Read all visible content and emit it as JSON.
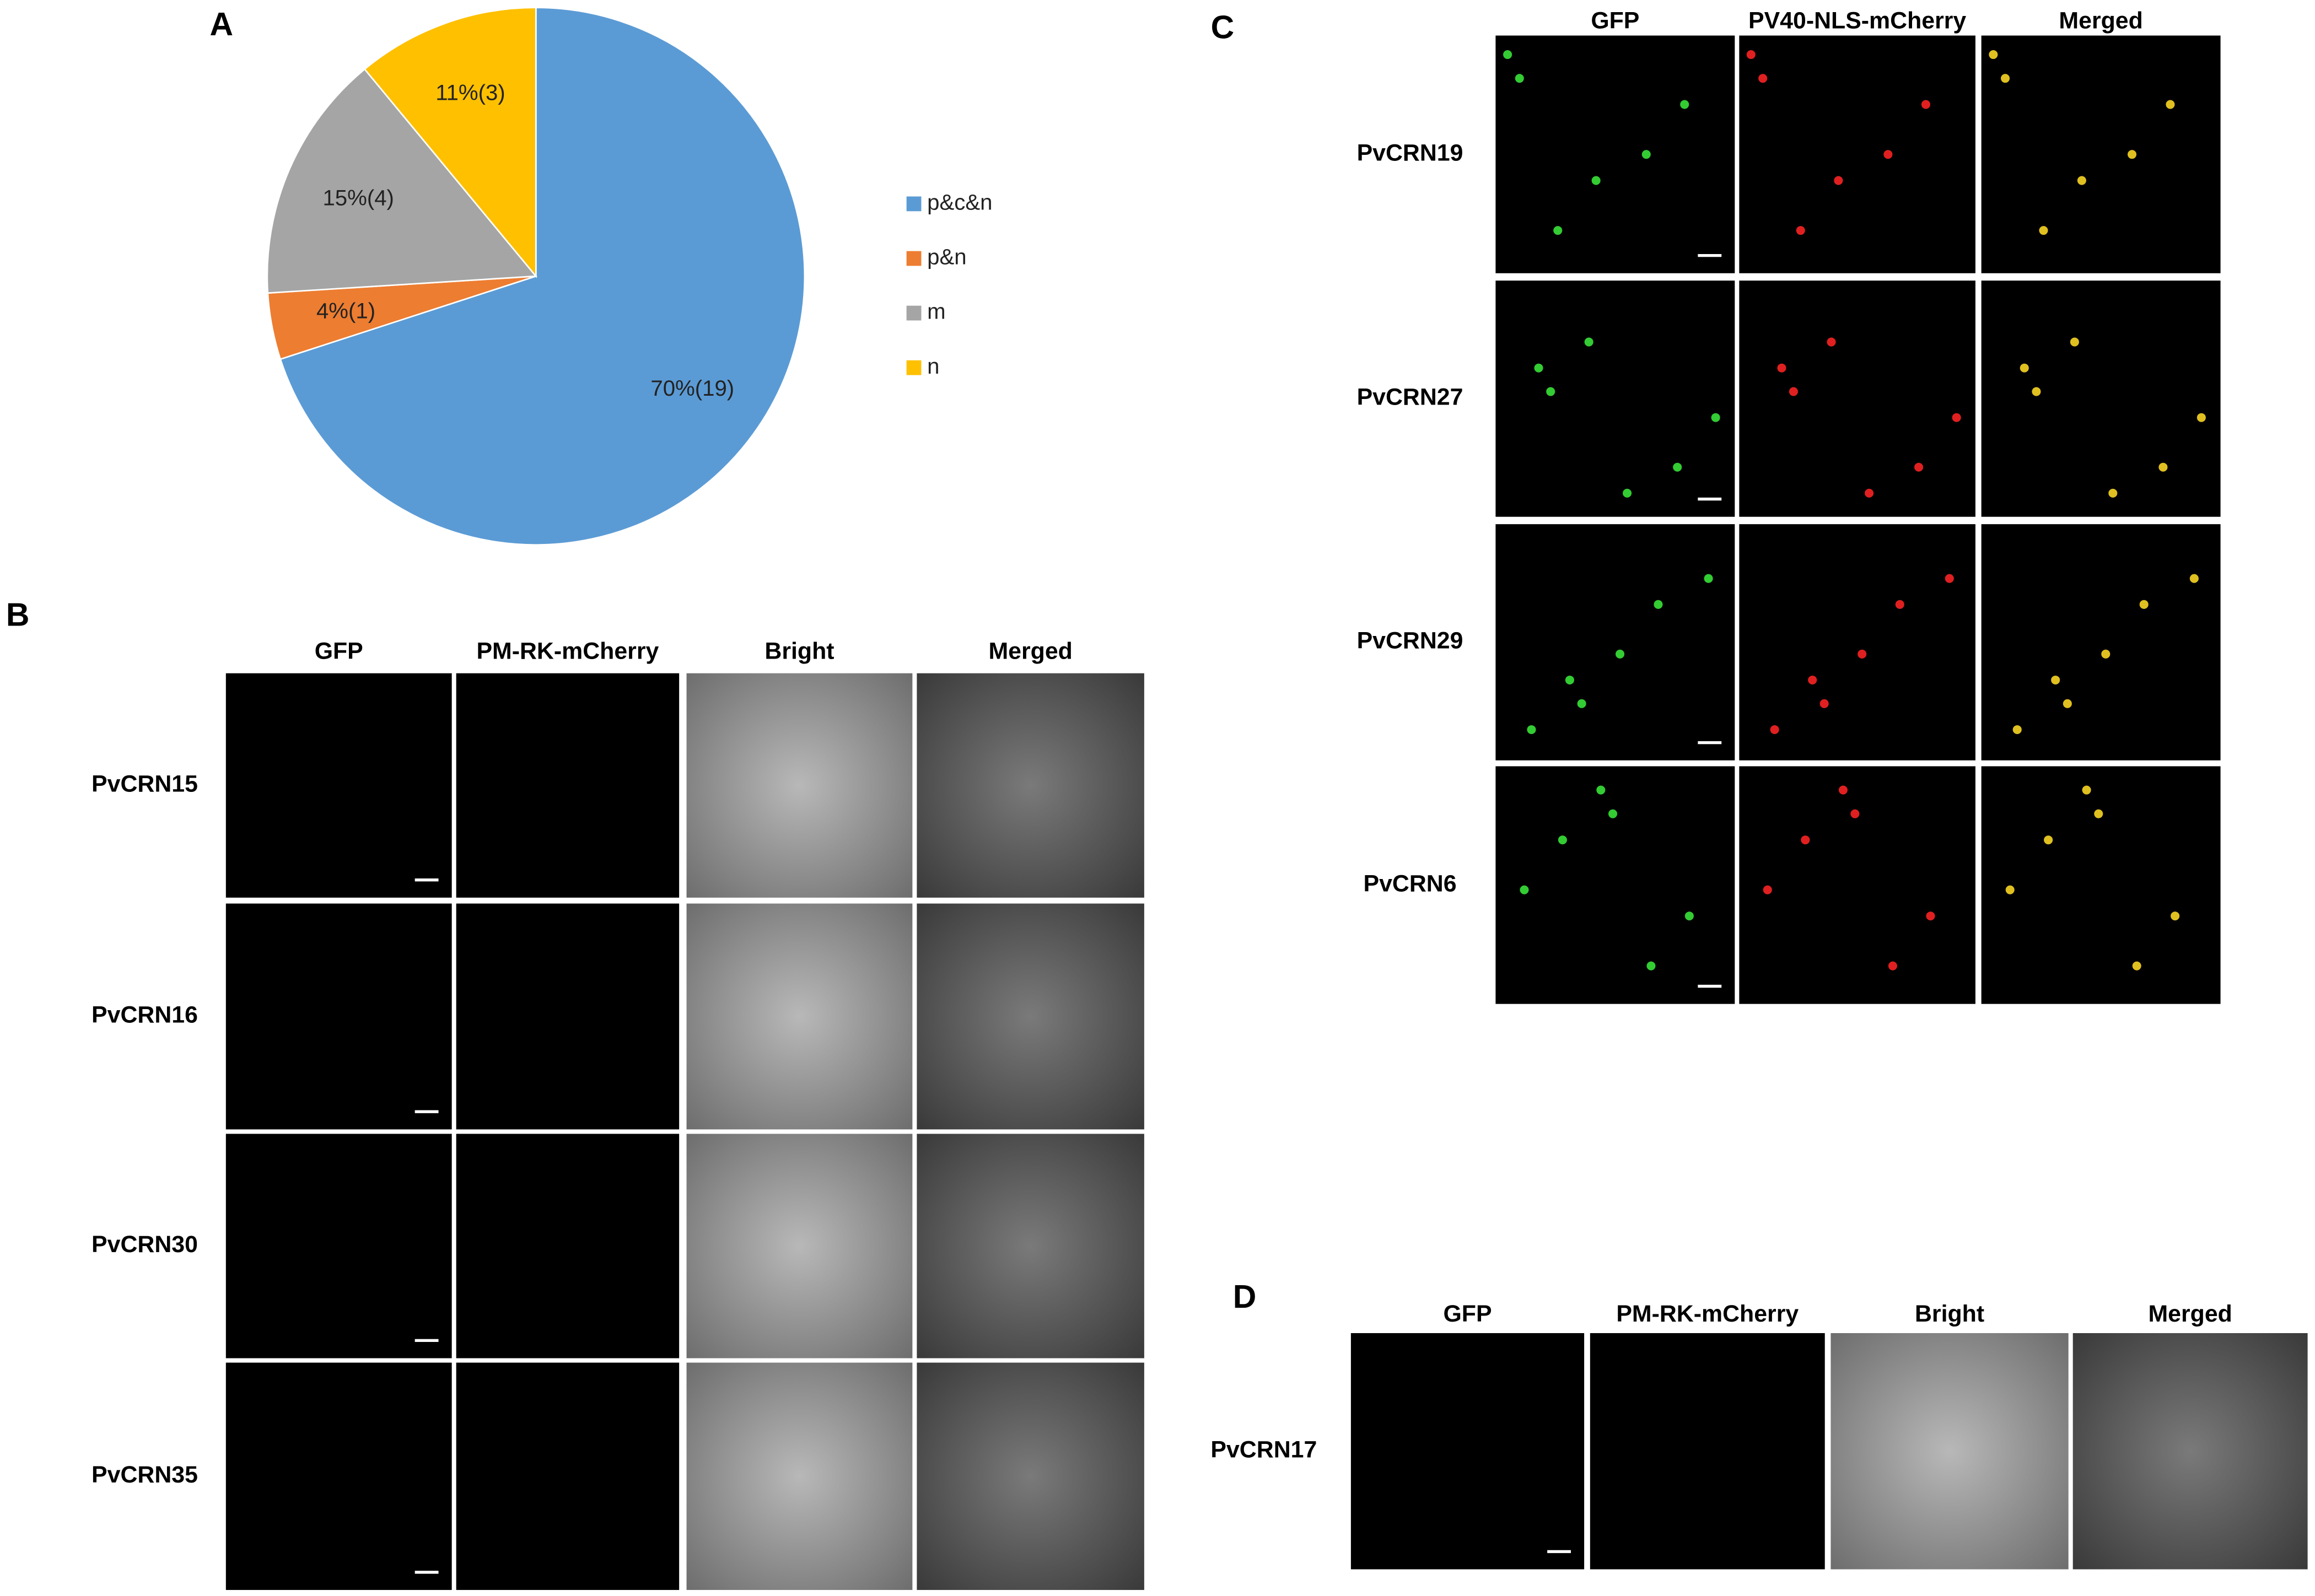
{
  "panel_labels": [
    "A",
    "B",
    "C",
    "D"
  ],
  "chart_data": {
    "type": "pie",
    "categories": [
      "p&c&n",
      "p&n",
      "m",
      "n"
    ],
    "values": [
      70,
      4,
      15,
      11
    ],
    "value_labels": [
      "70%(19)",
      "4%(1)",
      "15%(4)",
      "11%(3)"
    ],
    "colors": [
      "#5b9bd5",
      "#ed7d31",
      "#a5a5a5",
      "#ffc000"
    ],
    "legend": "right"
  },
  "panel_b": {
    "columns": [
      "GFP",
      "PM-RK-mCherry",
      "Bright",
      "Merged"
    ],
    "rows": [
      "PvCRN15",
      "PvCRN16",
      "PvCRN30",
      "PvCRN35"
    ]
  },
  "panel_c": {
    "columns": [
      "GFP",
      "PV40-NLS-mCherry",
      "Merged"
    ],
    "rows": [
      "PvCRN19",
      "PvCRN27",
      "PvCRN29",
      "PvCRN6"
    ]
  },
  "panel_d": {
    "columns": [
      "GFP",
      "PM-RK-mCherry",
      "Bright",
      "Merged"
    ],
    "rows": [
      "PvCRN17"
    ]
  }
}
